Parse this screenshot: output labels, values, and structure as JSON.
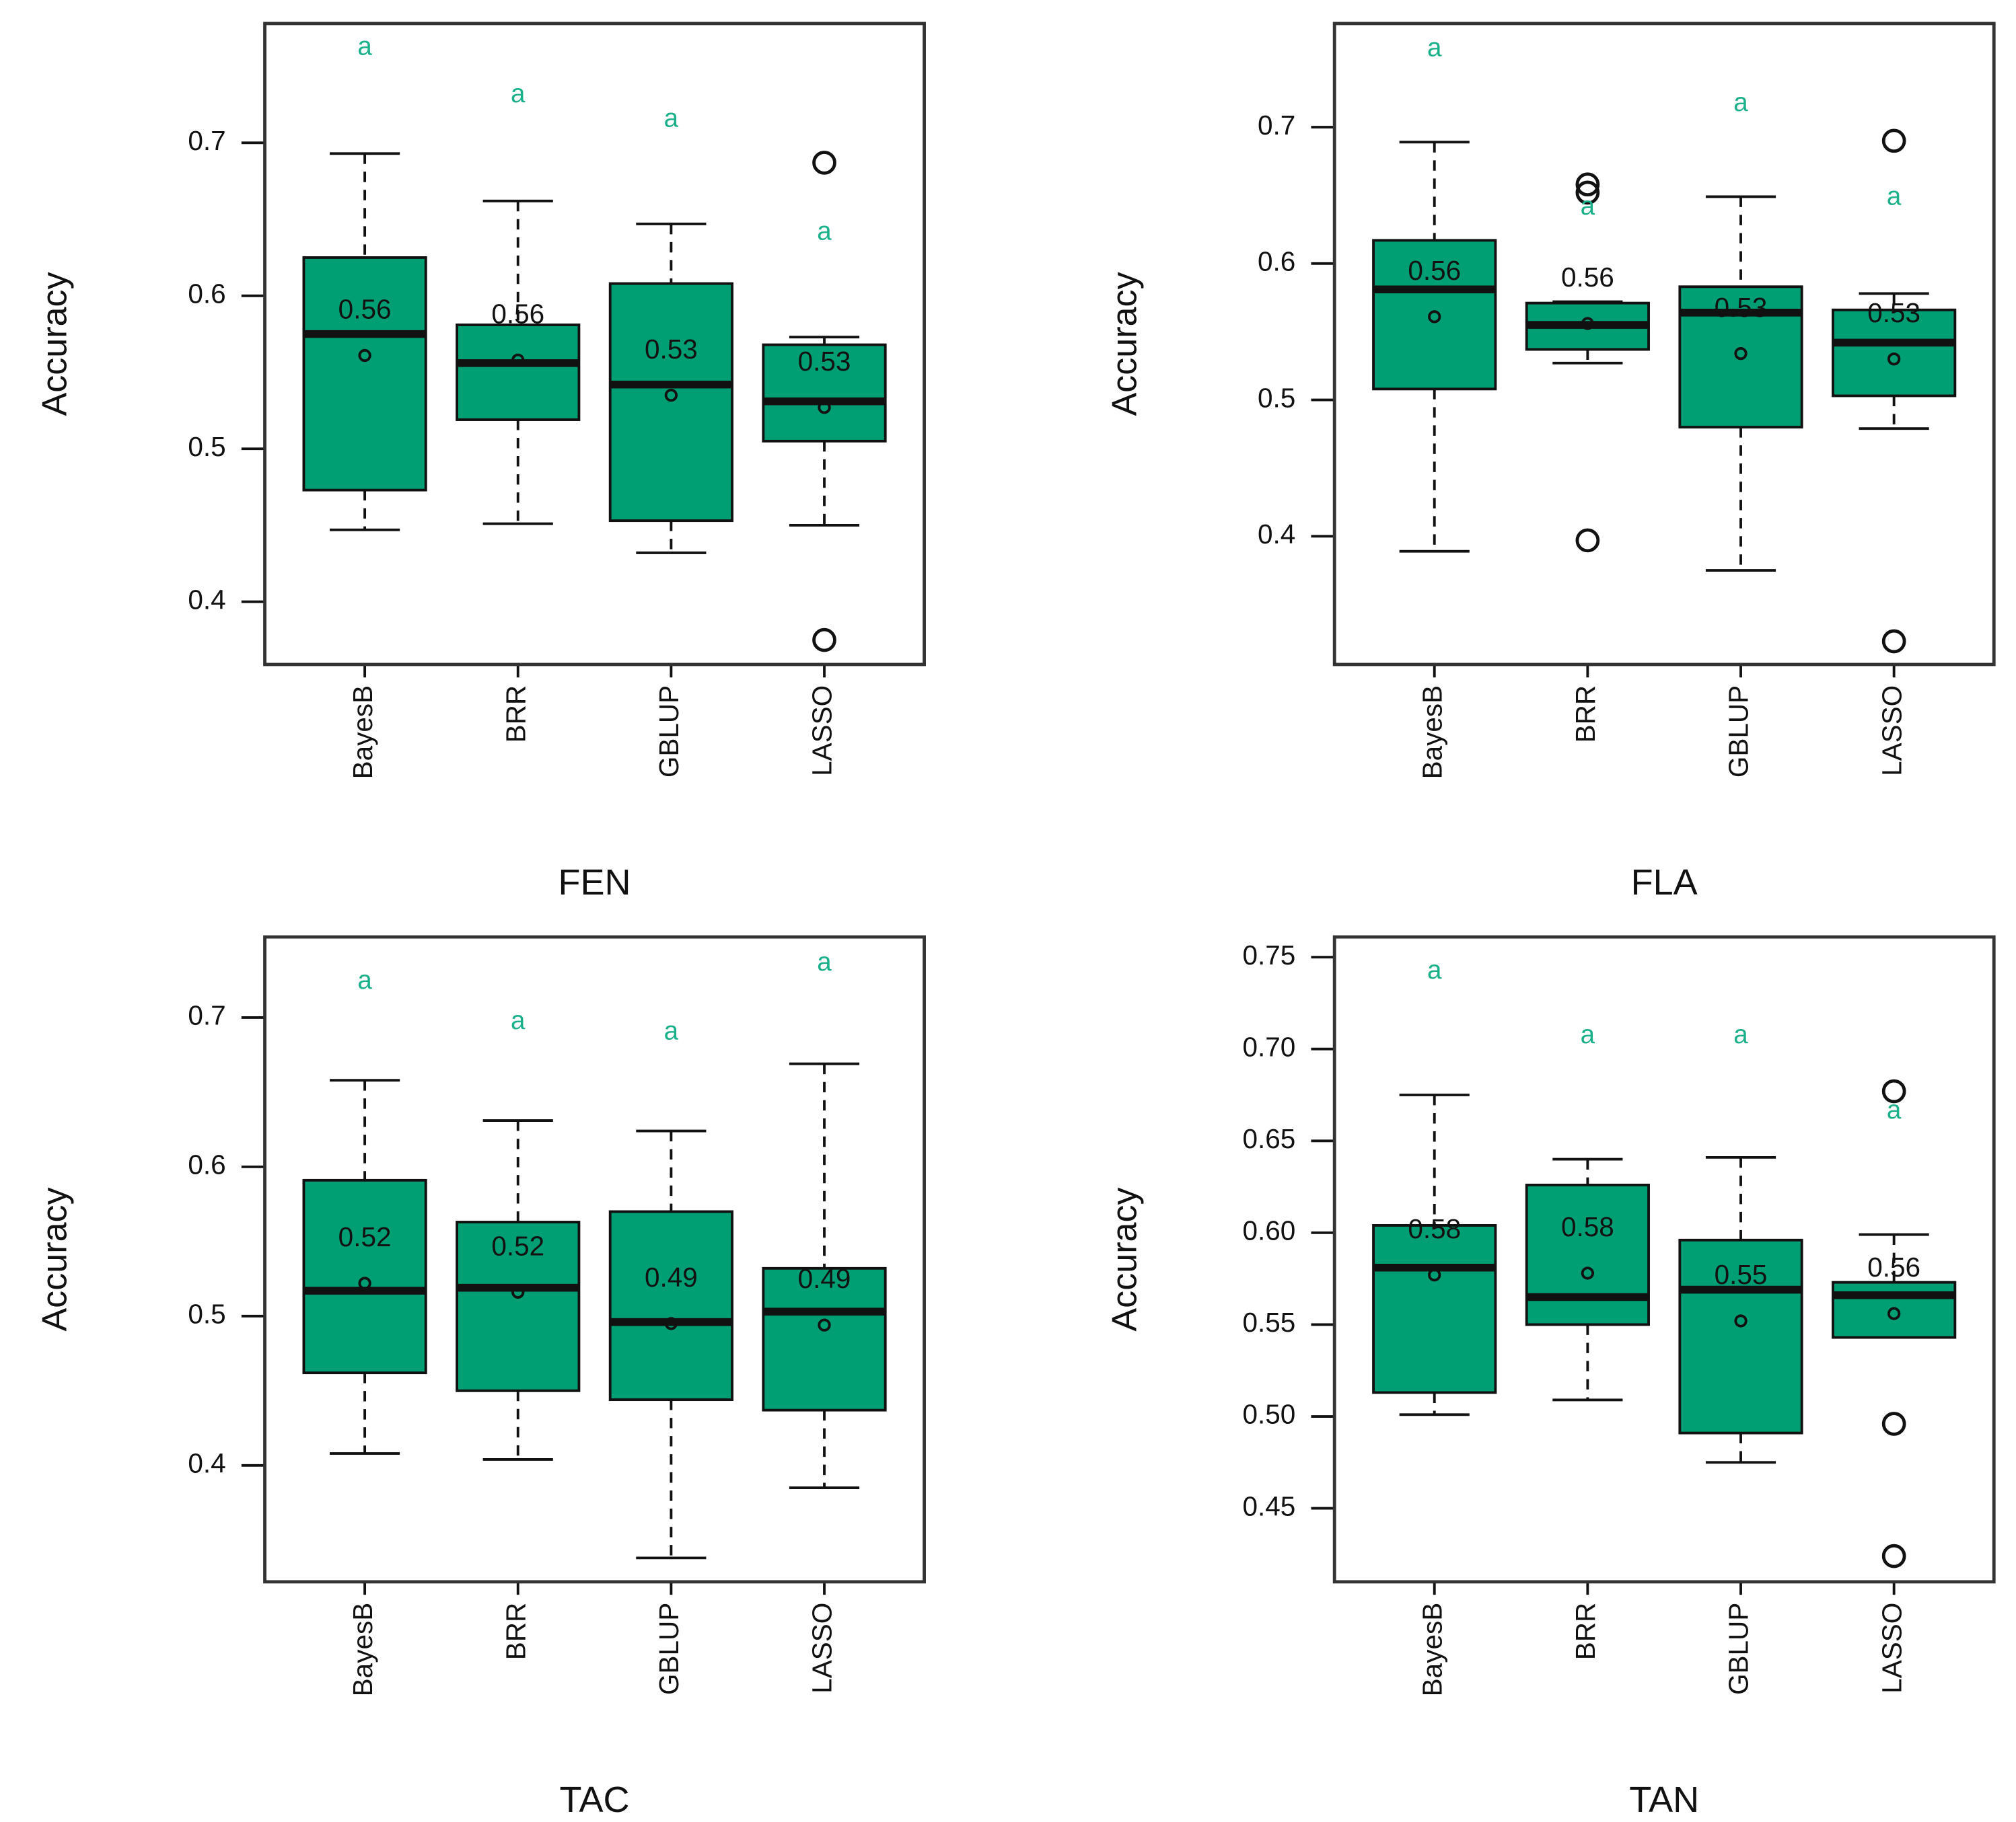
{
  "chart_data": [
    {
      "type": "box",
      "title": "FEN",
      "ylabel": "Accuracy",
      "color": "#009e73",
      "letter_color": "#1ab08a",
      "categories": [
        "BayesB",
        "BRR",
        "GBLUP",
        "LASSO"
      ],
      "ylim": [
        0.359,
        0.778
      ],
      "yticks": [
        0.4,
        0.5,
        0.6,
        0.7
      ],
      "boxes": [
        {
          "whisker_low": 0.447,
          "q1": 0.473,
          "median": 0.575,
          "q3": 0.625,
          "whisker_high": 0.693,
          "mean": 0.561,
          "mean_label": "0.56",
          "outliers": [],
          "letter": "a",
          "letter_value": 0.762
        },
        {
          "whisker_low": 0.451,
          "q1": 0.519,
          "median": 0.556,
          "q3": 0.581,
          "whisker_high": 0.662,
          "mean": 0.558,
          "mean_label": "0.56",
          "outliers": [],
          "letter": "a",
          "letter_value": 0.731
        },
        {
          "whisker_low": 0.432,
          "q1": 0.453,
          "median": 0.542,
          "q3": 0.608,
          "whisker_high": 0.647,
          "mean": 0.535,
          "mean_label": "0.53",
          "outliers": [],
          "letter": "a",
          "letter_value": 0.715
        },
        {
          "whisker_low": 0.45,
          "q1": 0.505,
          "median": 0.531,
          "q3": 0.568,
          "whisker_high": 0.573,
          "mean": 0.527,
          "mean_label": "0.53",
          "outliers": [
            0.687,
            0.375
          ],
          "letter": "a",
          "letter_value": 0.641
        }
      ]
    },
    {
      "type": "box",
      "title": "FLA",
      "ylabel": "Accuracy",
      "color": "#009e73",
      "letter_color": "#1ab08a",
      "categories": [
        "BayesB",
        "BRR",
        "GBLUP",
        "LASSO"
      ],
      "ylim": [
        0.306,
        0.776
      ],
      "yticks": [
        0.4,
        0.5,
        0.6,
        0.7
      ],
      "boxes": [
        {
          "whisker_low": 0.389,
          "q1": 0.508,
          "median": 0.581,
          "q3": 0.617,
          "whisker_high": 0.689,
          "mean": 0.561,
          "mean_label": "0.56",
          "outliers": [],
          "letter": "a",
          "letter_value": 0.757
        },
        {
          "whisker_low": 0.527,
          "q1": 0.537,
          "median": 0.555,
          "q3": 0.571,
          "whisker_high": 0.572,
          "mean": 0.556,
          "mean_label": "0.56",
          "outliers": [
            0.658,
            0.652,
            0.397
          ],
          "letter": "a",
          "letter_value": 0.641
        },
        {
          "whisker_low": 0.375,
          "q1": 0.48,
          "median": 0.564,
          "q3": 0.583,
          "whisker_high": 0.649,
          "mean": 0.534,
          "mean_label": "0.53",
          "outliers": [],
          "letter": "a",
          "letter_value": 0.717
        },
        {
          "whisker_low": 0.479,
          "q1": 0.503,
          "median": 0.542,
          "q3": 0.566,
          "whisker_high": 0.578,
          "mean": 0.53,
          "mean_label": "0.53",
          "outliers": [
            0.69,
            0.323
          ],
          "letter": "a",
          "letter_value": 0.648
        }
      ]
    },
    {
      "type": "box",
      "title": "TAC",
      "ylabel": "Accuracy",
      "color": "#009e73",
      "letter_color": "#1ab08a",
      "categories": [
        "BayesB",
        "BRR",
        "GBLUP",
        "LASSO"
      ],
      "ylim": [
        0.322,
        0.754
      ],
      "yticks": [
        0.4,
        0.5,
        0.6,
        0.7
      ],
      "boxes": [
        {
          "whisker_low": 0.408,
          "q1": 0.462,
          "median": 0.517,
          "q3": 0.591,
          "whisker_high": 0.658,
          "mean": 0.522,
          "mean_label": "0.52",
          "outliers": [],
          "letter": "a",
          "letter_value": 0.724
        },
        {
          "whisker_low": 0.404,
          "q1": 0.45,
          "median": 0.519,
          "q3": 0.563,
          "whisker_high": 0.631,
          "mean": 0.516,
          "mean_label": "0.52",
          "outliers": [],
          "letter": "a",
          "letter_value": 0.697
        },
        {
          "whisker_low": 0.338,
          "q1": 0.444,
          "median": 0.496,
          "q3": 0.57,
          "whisker_high": 0.624,
          "mean": 0.495,
          "mean_label": "0.49",
          "outliers": [],
          "letter": "a",
          "letter_value": 0.69
        },
        {
          "whisker_low": 0.385,
          "q1": 0.437,
          "median": 0.503,
          "q3": 0.532,
          "whisker_high": 0.669,
          "mean": 0.494,
          "mean_label": "0.49",
          "outliers": [],
          "letter": "a",
          "letter_value": 0.736
        }
      ]
    },
    {
      "type": "box",
      "title": "TAN",
      "ylabel": "Accuracy",
      "color": "#009e73",
      "letter_color": "#1ab08a",
      "categories": [
        "BayesB",
        "BRR",
        "GBLUP",
        "LASSO"
      ],
      "ylim": [
        0.41,
        0.761
      ],
      "yticks": [
        {
          "value": 0.45,
          "label": "0.45"
        },
        {
          "value": 0.5,
          "label": "0.50"
        },
        {
          "value": 0.55,
          "label": "0.55"
        },
        {
          "value": 0.6,
          "label": "0.60"
        },
        {
          "value": 0.65,
          "label": "0.65"
        },
        {
          "value": 0.7,
          "label": "0.70"
        },
        {
          "value": 0.75,
          "label": "0.75"
        }
      ],
      "boxes": [
        {
          "whisker_low": 0.501,
          "q1": 0.513,
          "median": 0.581,
          "q3": 0.604,
          "whisker_high": 0.675,
          "mean": 0.577,
          "mean_label": "0.58",
          "outliers": [],
          "letter": "a",
          "letter_value": 0.742
        },
        {
          "whisker_low": 0.509,
          "q1": 0.55,
          "median": 0.565,
          "q3": 0.626,
          "whisker_high": 0.64,
          "mean": 0.578,
          "mean_label": "0.58",
          "outliers": [],
          "letter": "a",
          "letter_value": 0.707
        },
        {
          "whisker_low": 0.475,
          "q1": 0.491,
          "median": 0.569,
          "q3": 0.596,
          "whisker_high": 0.641,
          "mean": 0.552,
          "mean_label": "0.55",
          "outliers": [],
          "letter": "a",
          "letter_value": 0.707
        },
        {
          "whisker_low": 0.543,
          "q1": 0.543,
          "median": 0.566,
          "q3": 0.573,
          "whisker_high": 0.599,
          "mean": 0.556,
          "mean_label": "0.56",
          "outliers": [
            0.677,
            0.496,
            0.424
          ],
          "letter": "a",
          "letter_value": 0.666
        }
      ]
    }
  ]
}
